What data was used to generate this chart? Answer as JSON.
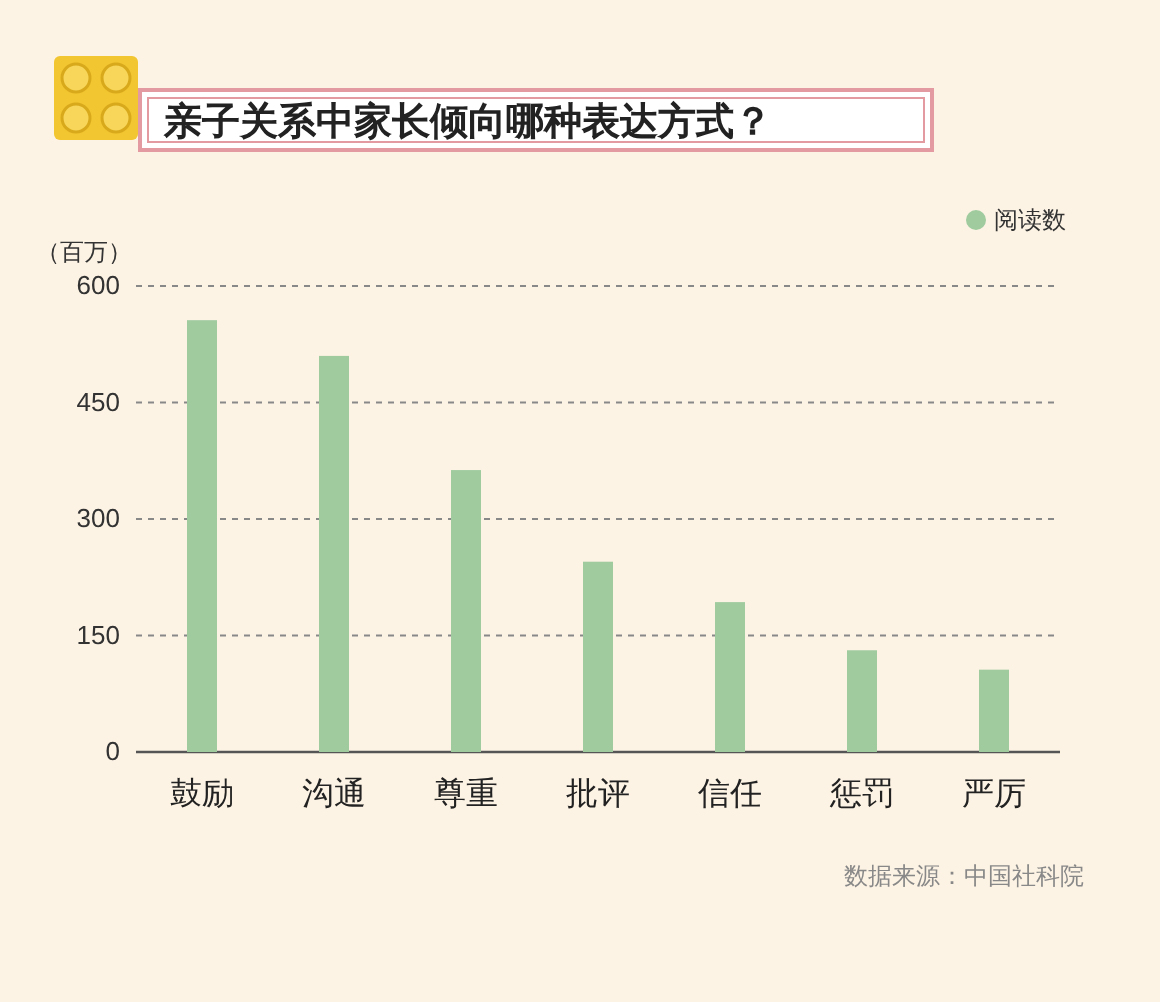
{
  "chart_data": {
    "type": "bar",
    "title": "亲子关系中家长倾向哪种表达方式？",
    "ylabel": "（百万）",
    "categories": [
      "鼓励",
      "沟通",
      "尊重",
      "批评",
      "信任",
      "惩罚",
      "严厉"
    ],
    "series": [
      {
        "name": "阅读数",
        "color": "#9fcb9f",
        "values": [
          556,
          510,
          363,
          245,
          193,
          131,
          106
        ]
      }
    ],
    "ylim": [
      0,
      600
    ],
    "yticks": [
      0,
      150,
      300,
      450,
      600
    ],
    "grid": "y",
    "legend": "top right",
    "annotations": [
      "数据来源：中国社科院"
    ]
  }
}
